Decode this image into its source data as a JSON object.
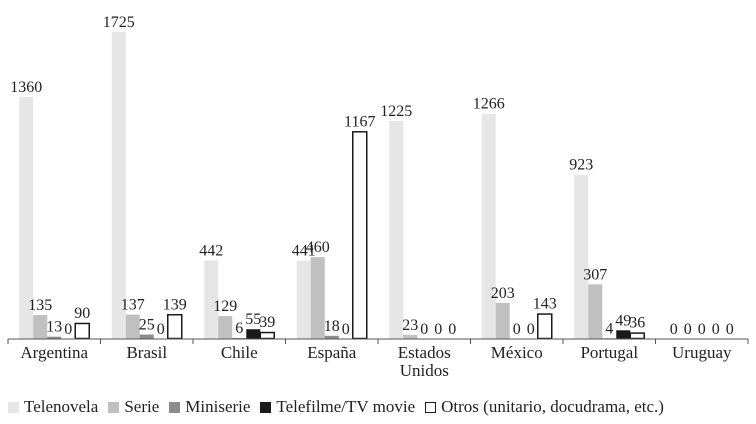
{
  "chart_data": {
    "type": "bar",
    "title": "",
    "xlabel": "",
    "ylabel": "",
    "ylim": [
      0,
      1725
    ],
    "grid": false,
    "legend_position": "bottom",
    "categories": [
      "Argentina",
      "Brasil",
      "Chile",
      "España",
      "Estados Unidos",
      "México",
      "Portugal",
      "Uruguay"
    ],
    "category_lines": [
      [
        "Argentina"
      ],
      [
        "Brasil"
      ],
      [
        "Chile"
      ],
      [
        "España"
      ],
      [
        "Estados",
        "Unidos"
      ],
      [
        "México"
      ],
      [
        "Portugal"
      ],
      [
        "Uruguay"
      ]
    ],
    "series": [
      {
        "name": "Telenovela",
        "values": [
          1360,
          1725,
          442,
          441,
          1225,
          1266,
          923,
          0
        ]
      },
      {
        "name": "Serie",
        "values": [
          135,
          137,
          129,
          460,
          23,
          203,
          307,
          0
        ]
      },
      {
        "name": "Miniserie",
        "values": [
          13,
          25,
          6,
          18,
          0,
          0,
          4,
          0
        ]
      },
      {
        "name": "Telefilme/TV movie",
        "values": [
          0,
          0,
          55,
          0,
          0,
          0,
          49,
          0
        ]
      },
      {
        "name": "Otros (unitario, docudrama, etc.)",
        "values": [
          90,
          139,
          39,
          1167,
          0,
          143,
          36,
          0
        ]
      }
    ],
    "colors": [
      "#e6e6e6",
      "#c0c0c0",
      "#8c8c8c",
      "#1a1a1a",
      "#ffffff"
    ],
    "outline": "#1a1a1a"
  }
}
